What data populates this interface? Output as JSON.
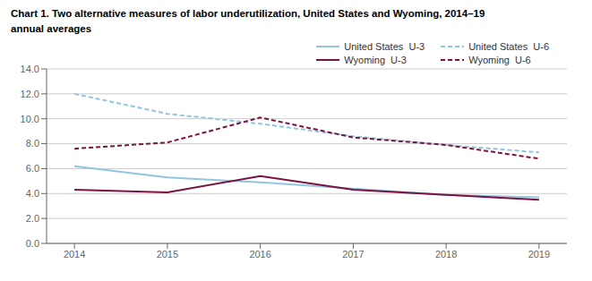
{
  "chart_data": {
    "type": "line",
    "title": "Chart 1. Two alternative measures of labor underutilization, United States and Wyoming, 2014–19",
    "subtitle": "annual averages",
    "x": [
      2014,
      2015,
      2016,
      2017,
      2018,
      2019
    ],
    "xlim": [
      2013.7,
      2019.3
    ],
    "xticks": [
      2014,
      2015,
      2016,
      2017,
      2018,
      2019
    ],
    "ylim": [
      0.0,
      14.0
    ],
    "yticks": [
      {
        "value": 0,
        "label": "0.0"
      },
      {
        "value": 2,
        "label": "2.0"
      },
      {
        "value": 4,
        "label": "4.0"
      },
      {
        "value": 6,
        "label": "6.0"
      },
      {
        "value": 8,
        "label": "8.0"
      },
      {
        "value": 10,
        "label": "10.0"
      },
      {
        "value": 12,
        "label": "12.0"
      },
      {
        "value": 14,
        "label": "14.0"
      }
    ],
    "grid": true,
    "legend": "upper right",
    "series": [
      {
        "name": "United States  U-3",
        "color": "#92c5de",
        "line_style": "solid",
        "values": [
          6.2,
          5.3,
          4.9,
          4.4,
          3.9,
          3.7
        ]
      },
      {
        "name": "United States  U-6",
        "color": "#92c5de",
        "line_style": "dashed",
        "values": [
          12.0,
          10.4,
          9.6,
          8.6,
          7.9,
          7.3
        ]
      },
      {
        "name": "Wyoming  U-3",
        "color": "#7b1240",
        "line_style": "solid",
        "values": [
          4.3,
          4.1,
          5.4,
          4.3,
          3.9,
          3.5
        ]
      },
      {
        "name": "Wyoming  U-6",
        "color": "#7b1240",
        "line_style": "dashed",
        "values": [
          7.6,
          8.1,
          10.1,
          8.5,
          7.9,
          6.8
        ]
      }
    ]
  }
}
